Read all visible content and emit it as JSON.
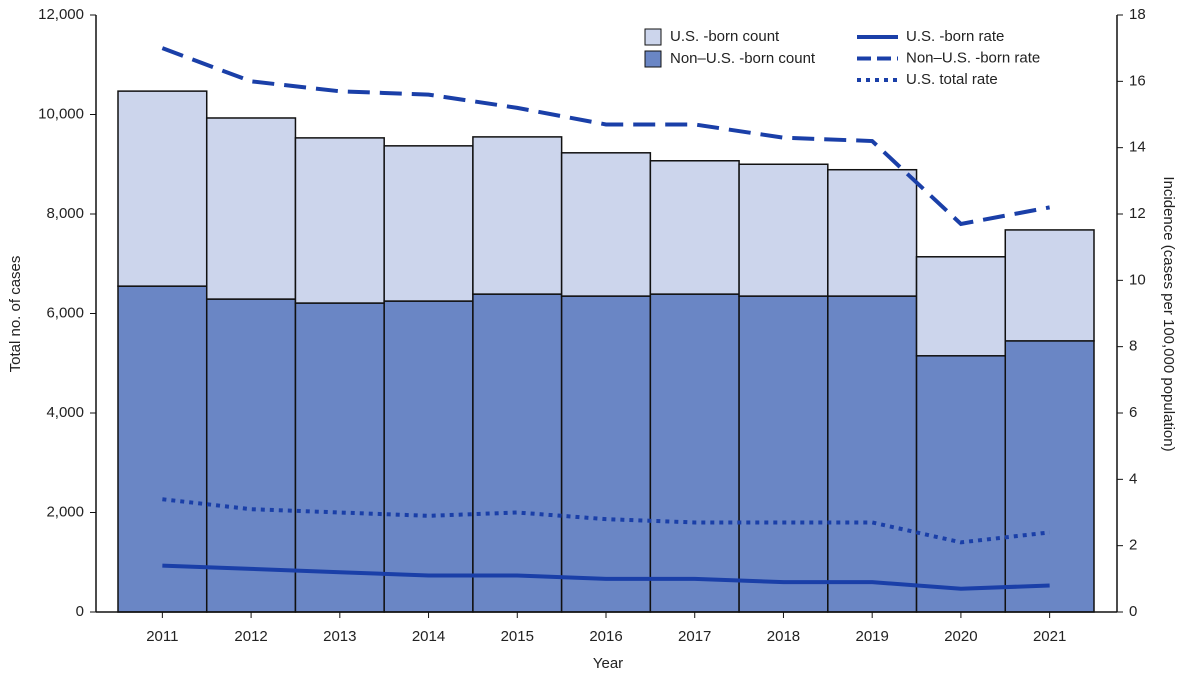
{
  "chart_data": {
    "type": "bar",
    "xlabel": "Year",
    "ylabel": "Total no. of cases",
    "y2label": "Incidence (cases per 100,000 population)",
    "categories": [
      "2011",
      "2012",
      "2013",
      "2014",
      "2015",
      "2016",
      "2017",
      "2018",
      "2019",
      "2020",
      "2021"
    ],
    "ylim": [
      0,
      12000
    ],
    "yticks": [
      0,
      {
        "value": 2000,
        "label": "2,000"
      },
      {
        "value": 4000,
        "label": "4,000"
      },
      {
        "value": 6000,
        "label": "6,000"
      },
      {
        "value": 8000,
        "label": "8,000"
      },
      {
        "value": 10000,
        "label": "10,000"
      },
      {
        "value": 12000,
        "label": "12,000"
      }
    ],
    "y2lim": [
      0,
      18
    ],
    "y2ticks": [
      0,
      2,
      4,
      6,
      8,
      10,
      12,
      14,
      16,
      18
    ],
    "stacked": true,
    "series": [
      {
        "name": "U.S. -born count",
        "type": "bar",
        "color": "#ccd5ec",
        "values": [
          3920,
          3640,
          3320,
          3120,
          3160,
          2880,
          2680,
          2650,
          2540,
          1990,
          2230
        ]
      },
      {
        "name": "Non–U.S. -born count",
        "type": "bar",
        "color": "#6a86c5",
        "values": [
          6550,
          6290,
          6210,
          6250,
          6390,
          6350,
          6390,
          6350,
          6350,
          5150,
          5450
        ]
      },
      {
        "name": "U.S. -born rate",
        "type": "line",
        "axis": "y2",
        "color": "#1a3fa8",
        "style": "solid",
        "values": [
          1.4,
          1.3,
          1.2,
          1.1,
          1.1,
          1.0,
          1.0,
          0.9,
          0.9,
          0.7,
          0.8
        ]
      },
      {
        "name": "Non–U.S. -born rate",
        "type": "line",
        "axis": "y2",
        "color": "#1a3fa8",
        "style": "dashed",
        "values": [
          17.0,
          16.0,
          15.7,
          15.6,
          15.2,
          14.7,
          14.7,
          14.3,
          14.2,
          11.7,
          12.2
        ]
      },
      {
        "name": "U.S. total rate",
        "type": "line",
        "axis": "y2",
        "color": "#1a3fa8",
        "style": "dotted",
        "values": [
          3.4,
          3.1,
          3.0,
          2.9,
          3.0,
          2.8,
          2.7,
          2.7,
          2.7,
          2.1,
          2.4
        ]
      }
    ]
  }
}
